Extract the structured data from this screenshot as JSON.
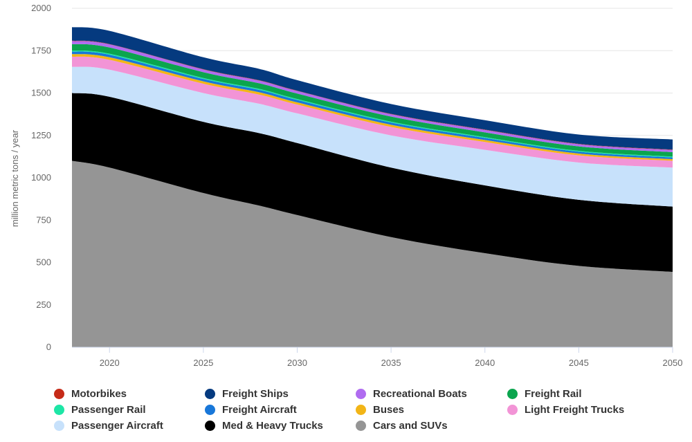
{
  "chart_data": {
    "type": "area",
    "stacked": true,
    "title": "",
    "xlabel": "",
    "ylabel": "million metric tons / year",
    "xlim": [
      2018,
      2050
    ],
    "ylim": [
      0,
      2000
    ],
    "x_ticks": [
      2020,
      2025,
      2030,
      2035,
      2040,
      2045,
      2050
    ],
    "y_ticks": [
      0,
      250,
      500,
      750,
      1000,
      1250,
      1500,
      1750,
      2000
    ],
    "grid": "horizontal",
    "legend_position": "bottom",
    "x": [
      2018,
      2020,
      2025,
      2028,
      2030,
      2035,
      2040,
      2045,
      2050
    ],
    "series": [
      {
        "name": "Cars and SUVs",
        "color": "#959595",
        "values": [
          1100,
          1060,
          910,
          835,
          780,
          650,
          555,
          480,
          445
        ]
      },
      {
        "name": "Med & Heavy Trucks",
        "color": "#000000",
        "values": [
          400,
          418,
          420,
          428,
          425,
          410,
          400,
          390,
          385
        ]
      },
      {
        "name": "Passenger Aircraft",
        "color": "#c7e1fb",
        "values": [
          155,
          160,
          170,
          173,
          175,
          190,
          210,
          220,
          230
        ]
      },
      {
        "name": "Light Freight Trucks",
        "color": "#f294d6",
        "values": [
          60,
          58,
          55,
          54,
          52,
          50,
          46,
          42,
          40
        ]
      },
      {
        "name": "Buses",
        "color": "#f2b517",
        "values": [
          15,
          15,
          14,
          14,
          13,
          13,
          12,
          11,
          10
        ]
      },
      {
        "name": "Freight Aircraft",
        "color": "#1877d9",
        "values": [
          15,
          15,
          14,
          14,
          14,
          13,
          12,
          11,
          10
        ]
      },
      {
        "name": "Passenger Rail",
        "color": "#1de6a6",
        "values": [
          6,
          6,
          6,
          6,
          6,
          5,
          5,
          5,
          5
        ]
      },
      {
        "name": "Freight Rail",
        "color": "#0ba54e",
        "values": [
          38,
          37,
          34,
          33,
          32,
          30,
          28,
          26,
          26
        ]
      },
      {
        "name": "Recreational Boats",
        "color": "#b06cf0",
        "values": [
          18,
          18,
          16,
          16,
          15,
          14,
          14,
          13,
          13
        ]
      },
      {
        "name": "Motorbikes",
        "color": "#c62b18",
        "values": [
          2,
          2,
          2,
          2,
          2,
          2,
          2,
          2,
          2
        ]
      },
      {
        "name": "Freight Ships",
        "color": "#053a7f",
        "values": [
          80,
          78,
          70,
          67,
          62,
          58,
          56,
          55,
          60
        ]
      }
    ],
    "legend_order": [
      "Motorbikes",
      "Freight Ships",
      "Recreational Boats",
      "Freight Rail",
      "Passenger Rail",
      "Freight Aircraft",
      "Buses",
      "Light Freight Trucks",
      "Passenger Aircraft",
      "Med & Heavy Trucks",
      "Cars and SUVs"
    ]
  }
}
